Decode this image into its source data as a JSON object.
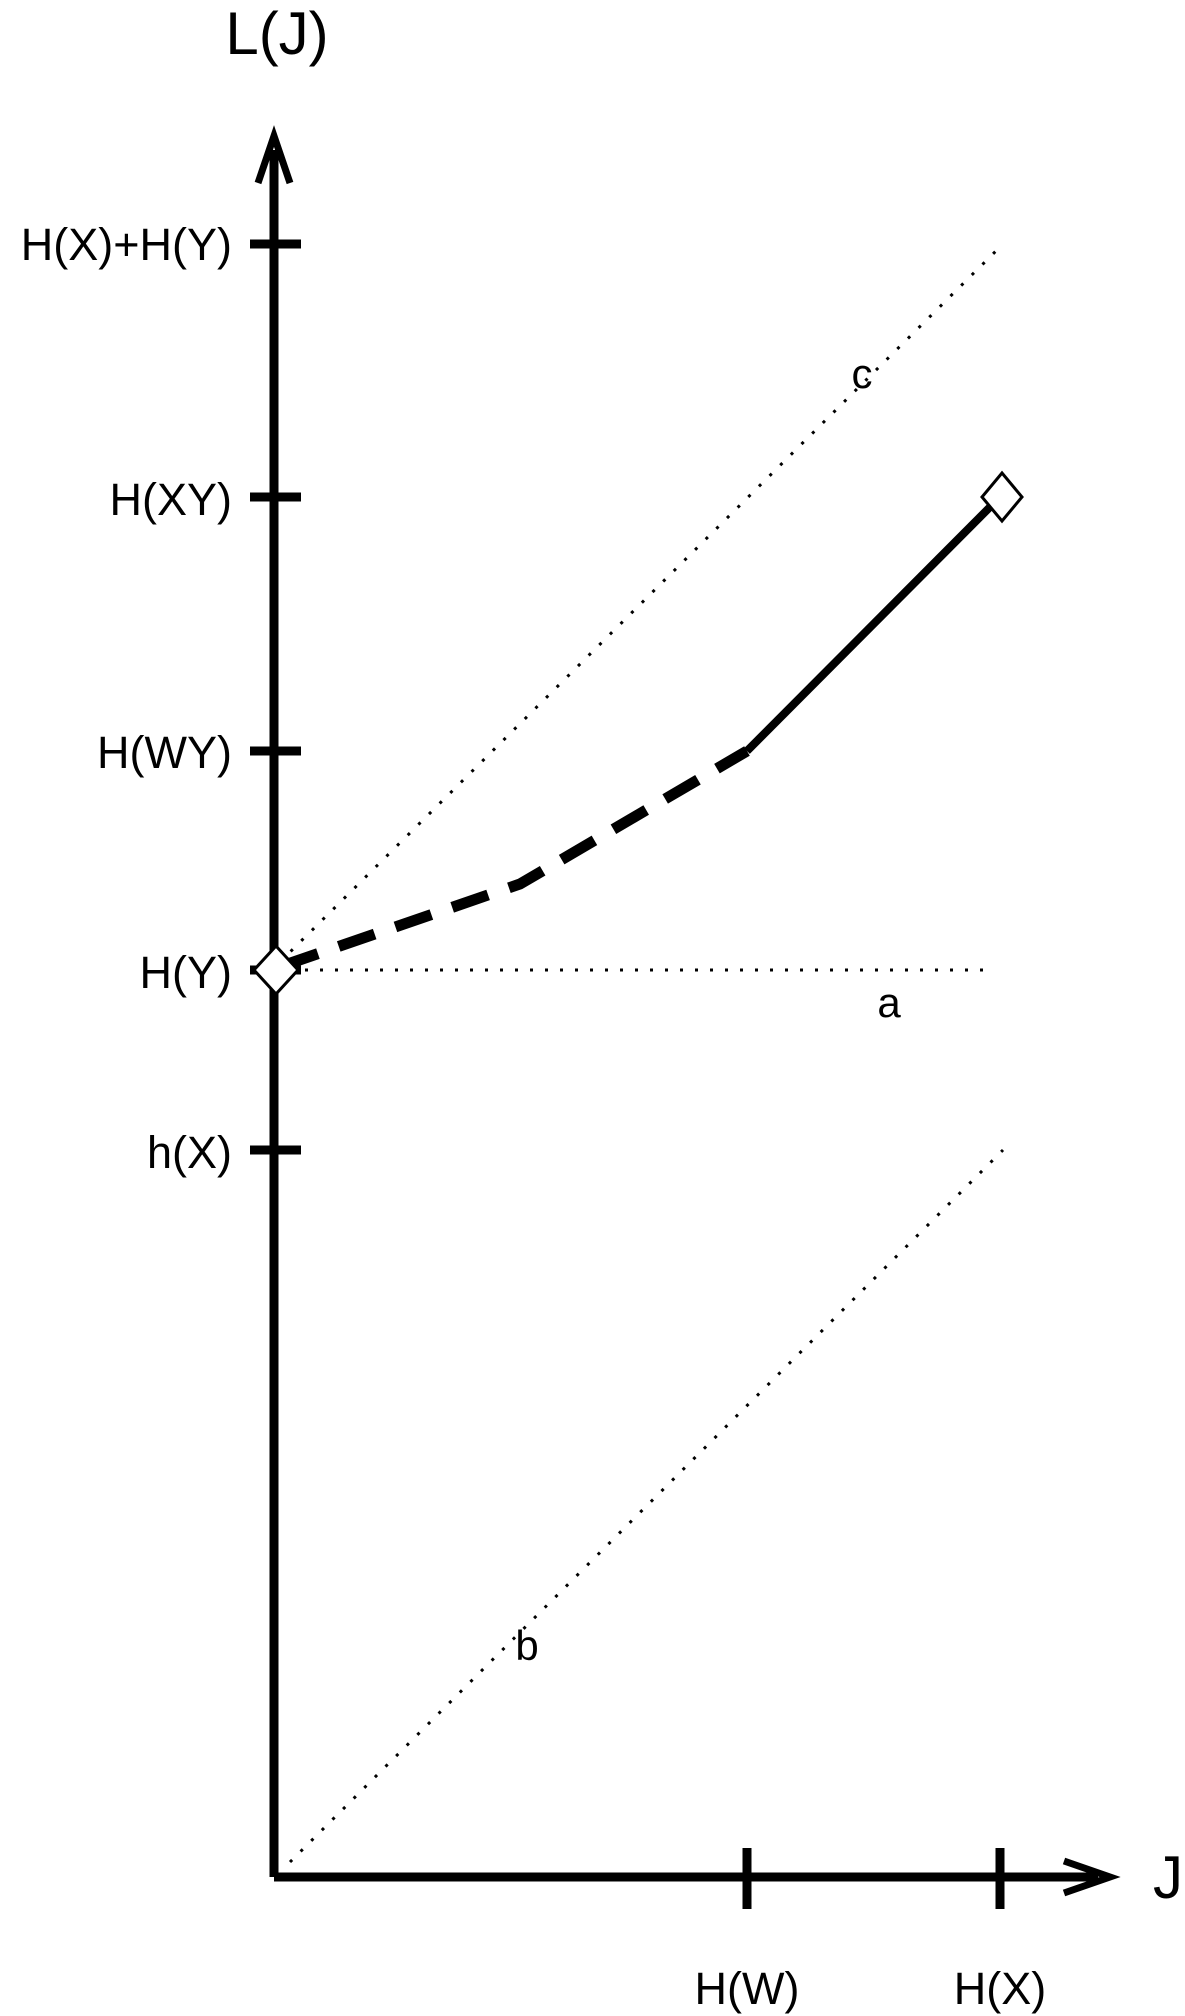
{
  "axes": {
    "y_title": "L(J)",
    "x_title": "J"
  },
  "y_ticks": [
    {
      "id": "hx_plus_hy",
      "label": "H(X)+H(Y)"
    },
    {
      "id": "hxy",
      "label": "H(XY)"
    },
    {
      "id": "hwy",
      "label": "H(WY)"
    },
    {
      "id": "hy",
      "label": "H(Y)"
    },
    {
      "id": "hx_small",
      "label": "h(X)"
    }
  ],
  "x_ticks": [
    {
      "id": "hw",
      "label": "H(W)"
    },
    {
      "id": "hx",
      "label": "H(X)"
    }
  ],
  "reference_lines": {
    "a": "a",
    "b": "b",
    "c": "c"
  },
  "colors": {
    "ink": "#000000",
    "background": "#ffffff"
  }
}
